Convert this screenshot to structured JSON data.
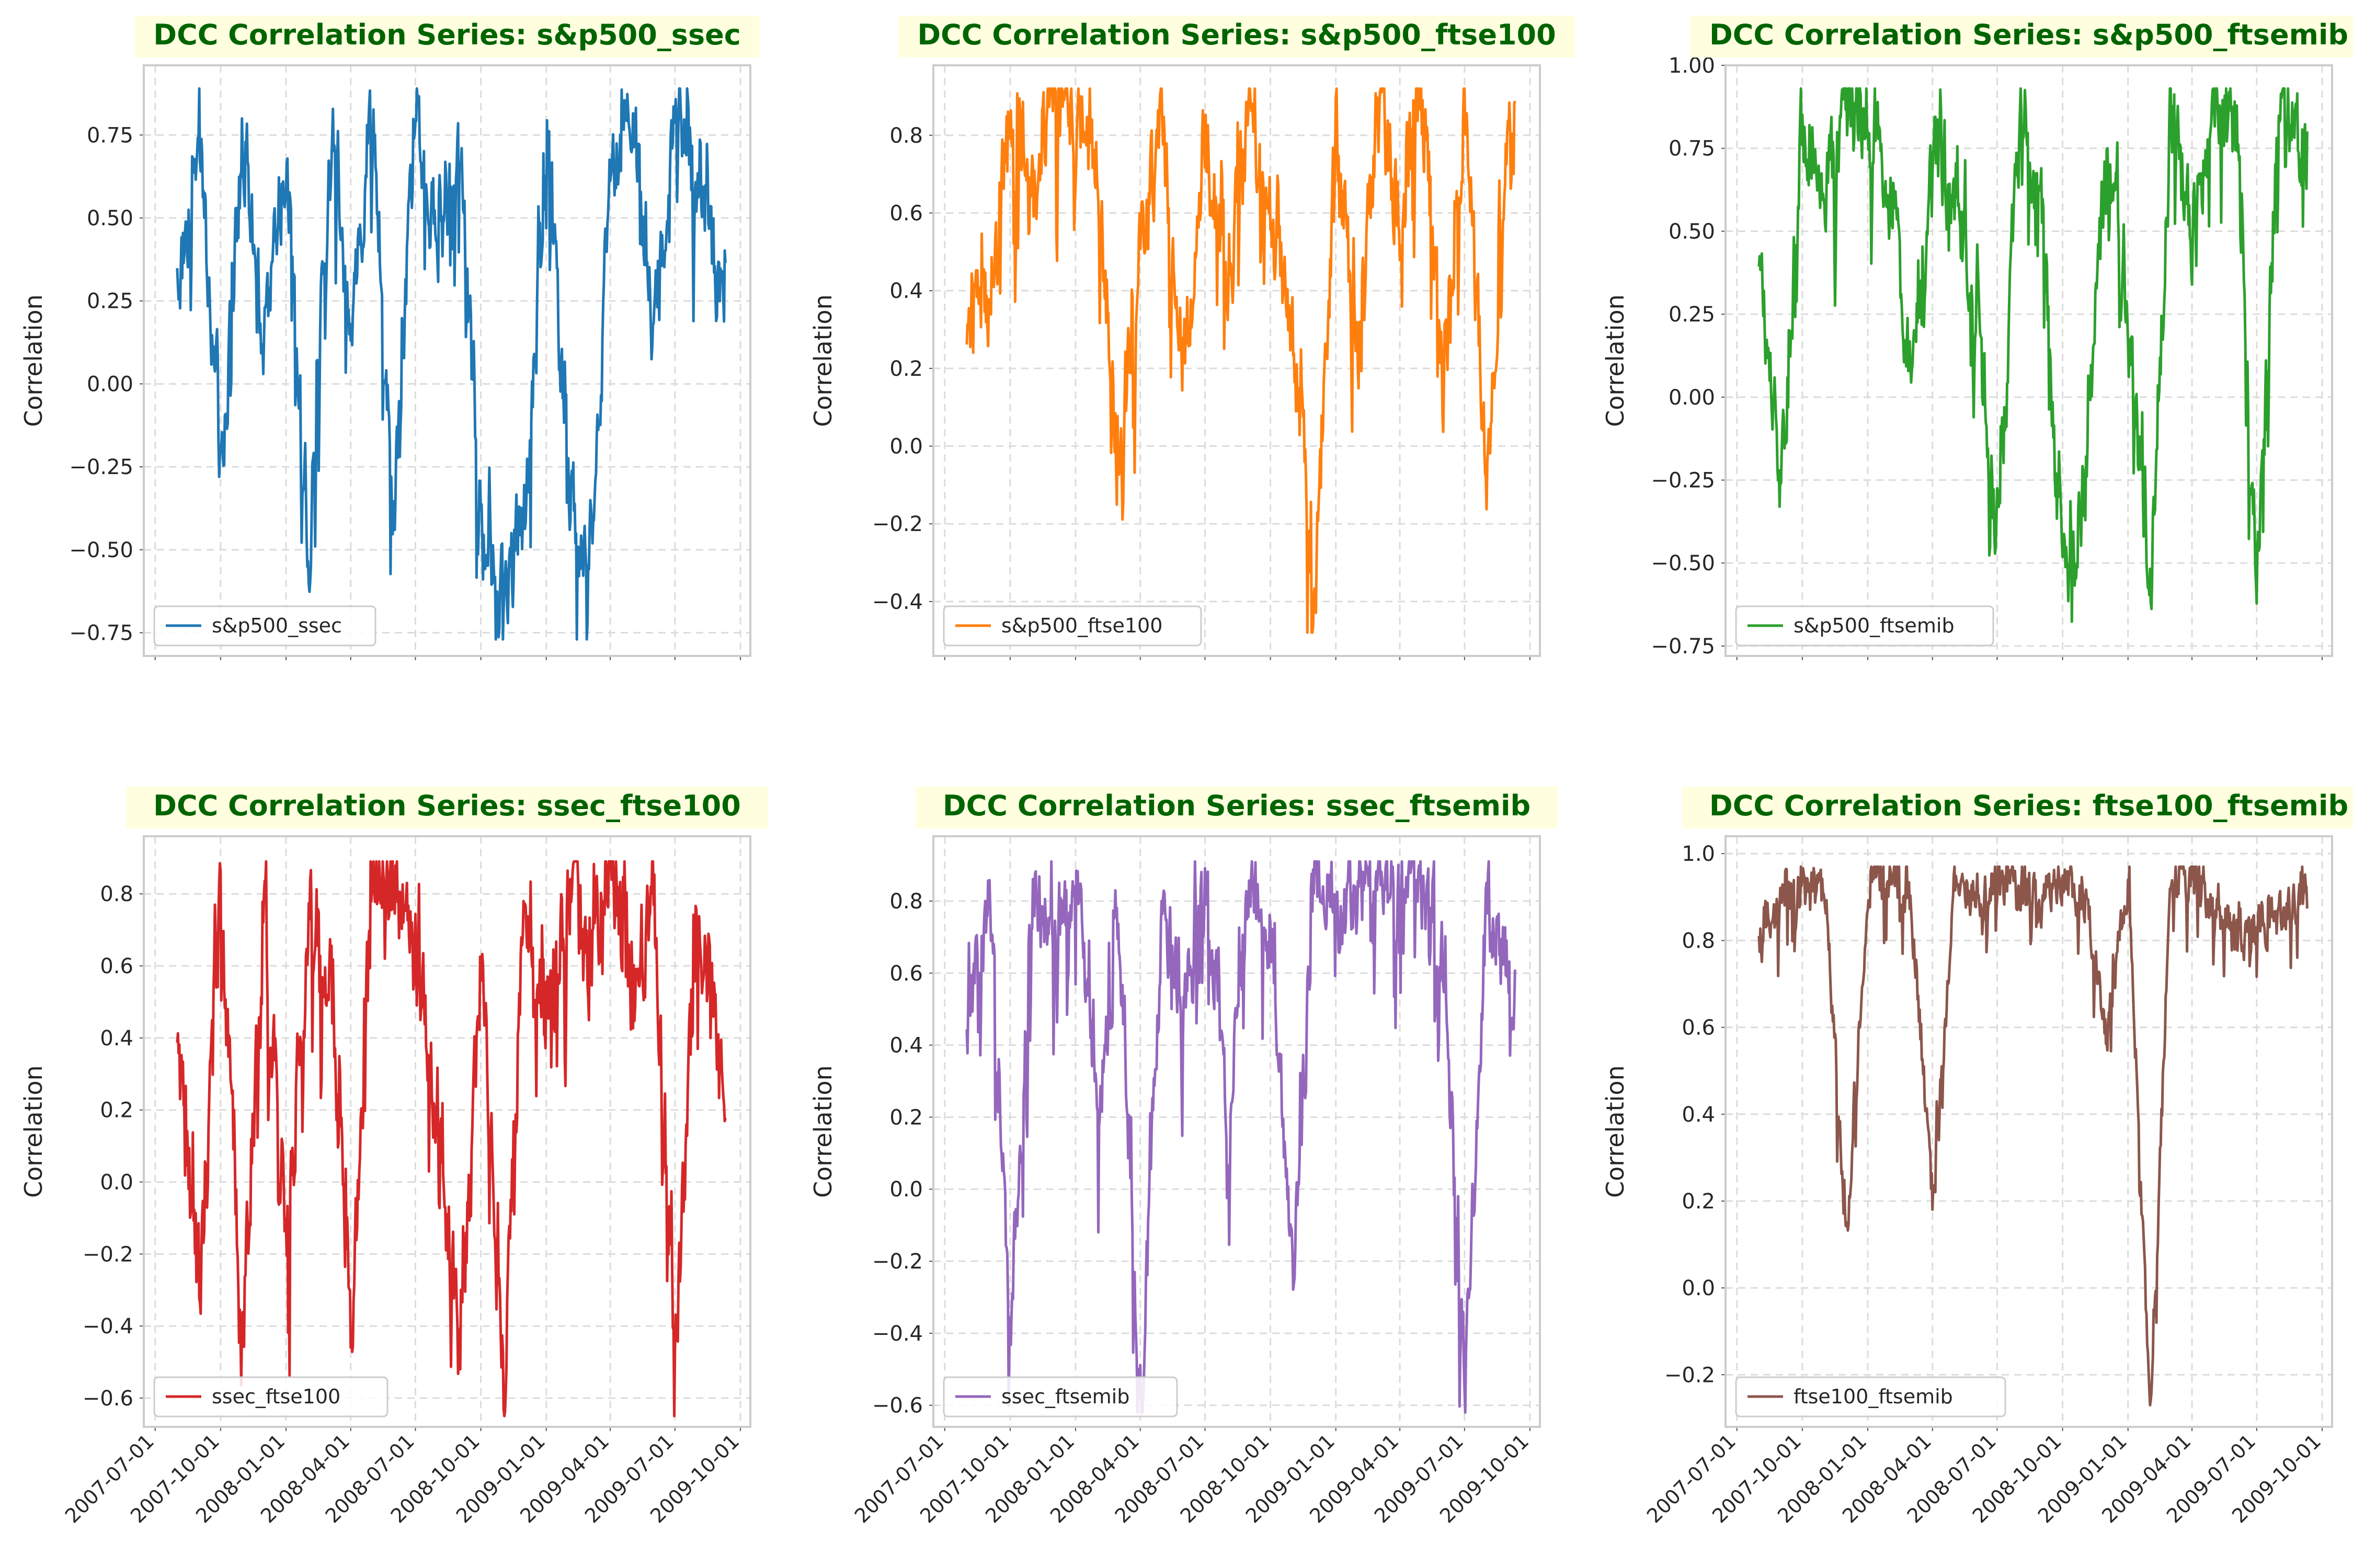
{
  "figure": {
    "title_prefix": "DCC Correlation Series: ",
    "ylabel": "Correlation",
    "x_ticks": [
      "2007-07-01",
      "2007-10-01",
      "2008-01-01",
      "2008-04-01",
      "2008-07-01",
      "2008-10-01",
      "2009-01-01",
      "2009-04-01",
      "2009-07-01",
      "2009-10-01"
    ],
    "x_range": [
      "2007-06-15",
      "2009-10-15"
    ],
    "data_range": [
      "2007-08-01",
      "2009-09-10"
    ],
    "grid": true,
    "legend_position": "lower-left",
    "title_background": "#ffffe0",
    "title_color": "#006400"
  },
  "chart_data": [
    {
      "type": "line",
      "title": "DCC Correlation Series: s&p500_ssec",
      "series_name": "s&p500_ssec",
      "color": "#1f77b4",
      "ylim": [
        -0.82,
        0.96
      ],
      "yticks": [
        -0.75,
        -0.5,
        -0.25,
        0.0,
        0.25,
        0.5,
        0.75
      ],
      "ytick_labels": [
        "−0.75",
        "−0.50",
        "−0.25",
        "0.00",
        "0.25",
        "0.50",
        "0.75"
      ],
      "min": -0.77,
      "max": 0.89,
      "mean": 0.12,
      "amp": 0.46,
      "x": [
        "2007-08-01",
        "2007-09-01",
        "2007-10-01",
        "2007-11-01",
        "2007-12-01",
        "2008-01-01",
        "2008-02-01",
        "2008-03-01",
        "2008-04-01",
        "2008-05-01",
        "2008-06-01",
        "2008-07-01",
        "2008-08-01",
        "2008-09-01",
        "2008-10-01",
        "2008-11-01",
        "2008-12-01",
        "2009-01-01",
        "2009-02-01",
        "2009-03-01",
        "2009-04-01",
        "2009-05-01",
        "2009-06-01",
        "2009-07-01",
        "2009-08-01",
        "2009-09-01"
      ],
      "values": [
        0.3,
        0.72,
        -0.3,
        0.78,
        0.1,
        0.7,
        -0.55,
        0.7,
        0.2,
        0.8,
        -0.4,
        0.85,
        0.4,
        0.75,
        -0.5,
        -0.65,
        -0.4,
        0.7,
        -0.3,
        -0.6,
        0.6,
        0.85,
        0.1,
        0.85,
        0.6,
        0.3
      ]
    },
    {
      "type": "line",
      "title": "DCC Correlation Series: s&p500_ftse100",
      "series_name": "s&p500_ftse100",
      "color": "#ff7f0e",
      "ylim": [
        -0.54,
        0.98
      ],
      "yticks": [
        -0.4,
        -0.2,
        0.0,
        0.2,
        0.4,
        0.6,
        0.8
      ],
      "ytick_labels": [
        "−0.4",
        "−0.2",
        "0.0",
        "0.2",
        "0.4",
        "0.6",
        "0.8"
      ],
      "min": -0.48,
      "max": 0.92,
      "mean": 0.42,
      "amp": 0.44,
      "x": [
        "2007-08-01",
        "2007-09-01",
        "2007-10-01",
        "2007-11-01",
        "2007-12-01",
        "2008-01-01",
        "2008-02-01",
        "2008-03-01",
        "2008-04-01",
        "2008-05-01",
        "2008-06-01",
        "2008-07-01",
        "2008-08-01",
        "2008-09-01",
        "2008-10-01",
        "2008-11-01",
        "2008-12-01",
        "2009-01-01",
        "2009-02-01",
        "2009-03-01",
        "2009-04-01",
        "2009-05-01",
        "2009-06-01",
        "2009-07-01",
        "2009-08-01",
        "2009-09-01"
      ],
      "values": [
        0.35,
        0.4,
        0.8,
        0.6,
        0.88,
        0.85,
        0.7,
        -0.1,
        0.5,
        0.85,
        0.2,
        0.8,
        0.4,
        0.85,
        0.6,
        0.3,
        -0.4,
        0.85,
        0.2,
        0.9,
        0.6,
        0.9,
        0.2,
        0.85,
        -0.05,
        0.85
      ]
    },
    {
      "type": "line",
      "title": "DCC Correlation Series: s&p500_ftsemib",
      "series_name": "s&p500_ftsemib",
      "color": "#2ca02c",
      "ylim": [
        -0.78,
        1.0
      ],
      "yticks": [
        -0.75,
        -0.5,
        -0.25,
        0.0,
        0.25,
        0.5,
        0.75,
        1.0
      ],
      "ytick_labels": [
        "−0.75",
        "−0.50",
        "−0.25",
        "0.00",
        "0.25",
        "0.50",
        "0.75",
        "1.00"
      ],
      "min": -0.71,
      "max": 0.93,
      "mean": 0.42,
      "amp": 0.46,
      "x": [
        "2007-08-01",
        "2007-09-01",
        "2007-10-01",
        "2007-11-01",
        "2007-12-01",
        "2008-01-01",
        "2008-02-01",
        "2008-03-01",
        "2008-04-01",
        "2008-05-01",
        "2008-06-01",
        "2008-07-01",
        "2008-08-01",
        "2008-09-01",
        "2008-10-01",
        "2008-11-01",
        "2008-12-01",
        "2009-01-01",
        "2009-02-01",
        "2009-03-01",
        "2009-04-01",
        "2009-05-01",
        "2009-06-01",
        "2009-07-01",
        "2009-08-01",
        "2009-09-01"
      ],
      "values": [
        0.4,
        -0.3,
        0.85,
        0.6,
        0.88,
        0.8,
        0.7,
        0.0,
        0.75,
        0.6,
        0.3,
        -0.5,
        0.85,
        0.6,
        -0.6,
        -0.3,
        0.8,
        0.2,
        -0.6,
        0.85,
        0.5,
        0.9,
        0.8,
        -0.55,
        0.9,
        0.75
      ]
    },
    {
      "type": "line",
      "title": "DCC Correlation Series: ssec_ftse100",
      "series_name": "ssec_ftse100",
      "color": "#d62728",
      "ylim": [
        -0.68,
        0.96
      ],
      "yticks": [
        -0.6,
        -0.4,
        -0.2,
        0.0,
        0.2,
        0.4,
        0.6,
        0.8
      ],
      "ytick_labels": [
        "−0.6",
        "−0.4",
        "−0.2",
        "0.0",
        "0.2",
        "0.4",
        "0.6",
        "0.8"
      ],
      "min": -0.65,
      "max": 0.89,
      "mean": 0.26,
      "amp": 0.5,
      "x": [
        "2007-08-01",
        "2007-09-01",
        "2007-10-01",
        "2007-11-01",
        "2007-12-01",
        "2008-01-01",
        "2008-02-01",
        "2008-03-01",
        "2008-04-01",
        "2008-05-01",
        "2008-06-01",
        "2008-07-01",
        "2008-08-01",
        "2008-09-01",
        "2008-10-01",
        "2008-11-01",
        "2008-12-01",
        "2009-01-01",
        "2009-02-01",
        "2009-03-01",
        "2009-04-01",
        "2009-05-01",
        "2009-06-01",
        "2009-07-01",
        "2009-08-01",
        "2009-09-01"
      ],
      "values": [
        0.3,
        -0.3,
        0.8,
        -0.4,
        0.7,
        -0.2,
        0.75,
        0.6,
        -0.4,
        0.8,
        0.85,
        0.6,
        0.2,
        -0.5,
        0.6,
        -0.6,
        0.85,
        0.4,
        0.8,
        0.6,
        0.85,
        0.5,
        0.8,
        -0.5,
        0.8,
        0.3
      ]
    },
    {
      "type": "line",
      "title": "DCC Correlation Series: ssec_ftsemib",
      "series_name": "ssec_ftsemib",
      "color": "#9467bd",
      "ylim": [
        -0.66,
        0.98
      ],
      "yticks": [
        -0.6,
        -0.4,
        -0.2,
        0.0,
        0.2,
        0.4,
        0.6,
        0.8
      ],
      "ytick_labels": [
        "−0.6",
        "−0.4",
        "−0.2",
        "0.0",
        "0.2",
        "0.4",
        "0.6",
        "0.8"
      ],
      "min": -0.62,
      "max": 0.91,
      "mean": 0.46,
      "amp": 0.42,
      "x": [
        "2007-08-01",
        "2007-09-01",
        "2007-10-01",
        "2007-11-01",
        "2007-12-01",
        "2008-01-01",
        "2008-02-01",
        "2008-03-01",
        "2008-04-01",
        "2008-05-01",
        "2008-06-01",
        "2008-07-01",
        "2008-08-01",
        "2008-09-01",
        "2008-10-01",
        "2008-11-01",
        "2008-12-01",
        "2009-01-01",
        "2009-02-01",
        "2009-03-01",
        "2009-04-01",
        "2009-05-01",
        "2009-06-01",
        "2009-07-01",
        "2009-08-01",
        "2009-09-01"
      ],
      "values": [
        0.5,
        0.8,
        -0.4,
        0.85,
        0.7,
        0.85,
        0.2,
        0.8,
        -0.6,
        0.75,
        0.5,
        0.85,
        0.2,
        0.85,
        0.7,
        -0.3,
        0.9,
        0.75,
        0.85,
        0.8,
        0.9,
        0.85,
        0.6,
        -0.55,
        0.8,
        0.6
      ]
    },
    {
      "type": "line",
      "title": "DCC Correlation Series: ftse100_ftsemib",
      "series_name": "ftse100_ftsemib",
      "color": "#8c564b",
      "ylim": [
        -0.32,
        1.04
      ],
      "yticks": [
        -0.2,
        0.0,
        0.2,
        0.4,
        0.6,
        0.8,
        1.0
      ],
      "ytick_labels": [
        "−0.2",
        "0.0",
        "0.2",
        "0.4",
        "0.6",
        "0.8",
        "1.0"
      ],
      "min": -0.27,
      "max": 0.97,
      "mean": 0.78,
      "amp": 0.2,
      "x": [
        "2007-08-01",
        "2007-09-01",
        "2007-10-01",
        "2007-11-01",
        "2007-12-01",
        "2008-01-01",
        "2008-02-01",
        "2008-03-01",
        "2008-04-01",
        "2008-05-01",
        "2008-06-01",
        "2008-07-01",
        "2008-08-01",
        "2008-09-01",
        "2008-10-01",
        "2008-11-01",
        "2008-12-01",
        "2009-01-01",
        "2009-02-01",
        "2009-03-01",
        "2009-04-01",
        "2009-05-01",
        "2009-06-01",
        "2009-07-01",
        "2009-08-01",
        "2009-09-01"
      ],
      "values": [
        0.8,
        0.9,
        0.9,
        0.92,
        0.1,
        0.95,
        0.95,
        0.9,
        0.2,
        0.95,
        0.9,
        0.95,
        0.9,
        0.9,
        0.95,
        0.9,
        0.6,
        0.92,
        -0.27,
        0.95,
        0.95,
        0.9,
        0.8,
        0.85,
        0.85,
        0.9
      ]
    }
  ]
}
